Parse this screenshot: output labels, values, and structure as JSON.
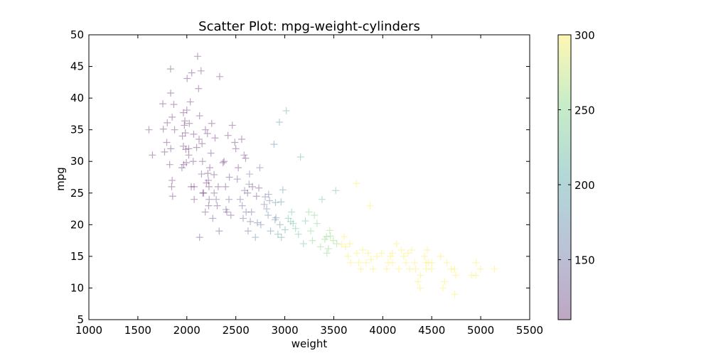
{
  "chart_data": {
    "type": "scatter",
    "title": "Scatter Plot: mpg-weight-cylinders",
    "xlabel": "weight",
    "ylabel": "mpg",
    "xlim": [
      1000,
      5500
    ],
    "ylim": [
      5,
      50
    ],
    "x_ticks": [
      "1000",
      "1500",
      "2000",
      "2500",
      "3000",
      "3500",
      "4000",
      "4500",
      "5000",
      "5500"
    ],
    "y_ticks": [
      "5",
      "10",
      "15",
      "20",
      "25",
      "30",
      "35",
      "40",
      "45",
      "50"
    ],
    "marker": "plus",
    "marker_alpha": 0.35,
    "colorbar": {
      "range": [
        110,
        300
      ],
      "ticks": [
        "150",
        "200",
        "250",
        "300"
      ],
      "colormap": [
        "#440154",
        "#3b528b",
        "#21908d",
        "#5dc963",
        "#fde725"
      ]
    },
    "points": [
      [
        1613,
        35,
        90
      ],
      [
        1649,
        31,
        80
      ],
      [
        1755,
        39.1,
        85
      ],
      [
        1760,
        35.1,
        85
      ],
      [
        1773,
        31.5,
        85
      ],
      [
        1795,
        33,
        91
      ],
      [
        1800,
        36.1,
        79
      ],
      [
        1825,
        29.5,
        90
      ],
      [
        1834,
        44.6,
        91
      ],
      [
        1835,
        40.8,
        89
      ],
      [
        1836,
        32,
        85
      ],
      [
        1845,
        26,
        97
      ],
      [
        1850,
        37,
        85
      ],
      [
        1850,
        27,
        97
      ],
      [
        1855,
        24.5,
        97
      ],
      [
        1867,
        39,
        86
      ],
      [
        1875,
        35,
        97
      ],
      [
        1950,
        29,
        97
      ],
      [
        1955,
        34,
        98
      ],
      [
        1965,
        32.4,
        107
      ],
      [
        1965,
        37.7,
        89
      ],
      [
        1968,
        29.5,
        98
      ],
      [
        1975,
        35.7,
        98
      ],
      [
        1980,
        36.4,
        91
      ],
      [
        1985,
        34.5,
        98
      ],
      [
        1990,
        31.9,
        89
      ],
      [
        1995,
        29.8,
        90
      ],
      [
        2000,
        38.1,
        97
      ],
      [
        2003,
        43.1,
        90
      ],
      [
        2019,
        32,
        91
      ],
      [
        2020,
        31,
        91
      ],
      [
        2025,
        36,
        98
      ],
      [
        2035,
        39.4,
        85
      ],
      [
        2045,
        26,
        98
      ],
      [
        2050,
        44,
        97
      ],
      [
        2065,
        30,
        98
      ],
      [
        2070,
        34.3,
        97
      ],
      [
        2074,
        26,
        107
      ],
      [
        2075,
        24,
        113
      ],
      [
        2100,
        32.2,
        108
      ],
      [
        2110,
        46.6,
        86
      ],
      [
        2120,
        41.5,
        98
      ],
      [
        2125,
        33.5,
        89
      ],
      [
        2130,
        18,
        121
      ],
      [
        2130,
        37.2,
        86
      ],
      [
        2145,
        44.3,
        90
      ],
      [
        2150,
        28,
        120
      ],
      [
        2155,
        32.8,
        91
      ],
      [
        2160,
        30,
        119
      ],
      [
        2164,
        25,
        97
      ],
      [
        2171,
        25,
        116
      ],
      [
        2188,
        22,
        120
      ],
      [
        2190,
        35,
        98
      ],
      [
        2200,
        26.6,
        108
      ],
      [
        2210,
        34.4,
        98
      ],
      [
        2215,
        28.1,
        97
      ],
      [
        2220,
        27,
        112
      ],
      [
        2223,
        23,
        120
      ],
      [
        2226,
        26,
        105
      ],
      [
        2228,
        24,
        120
      ],
      [
        2234,
        29,
        107
      ],
      [
        2246,
        31.3,
        120
      ],
      [
        2254,
        36,
        107
      ],
      [
        2265,
        21,
        122
      ],
      [
        2278,
        27.9,
        104
      ],
      [
        2279,
        25,
        120
      ],
      [
        2288,
        33.7,
        107
      ],
      [
        2300,
        24,
        134
      ],
      [
        2310,
        23,
        120
      ],
      [
        2320,
        26,
        110
      ],
      [
        2330,
        19,
        121
      ],
      [
        2335,
        43.4,
        90
      ],
      [
        2370,
        29.8,
        107
      ],
      [
        2380,
        30,
        108
      ],
      [
        2395,
        26,
        113
      ],
      [
        2400,
        22.4,
        134
      ],
      [
        2408,
        22,
        122
      ],
      [
        2420,
        34.1,
        105
      ],
      [
        2430,
        24,
        134
      ],
      [
        2434,
        27.5,
        116
      ],
      [
        2450,
        21.5,
        121
      ],
      [
        2464,
        35.7,
        112
      ],
      [
        2490,
        33,
        107
      ],
      [
        2500,
        32,
        112
      ],
      [
        2515,
        27.2,
        120
      ],
      [
        2525,
        29,
        107
      ],
      [
        2545,
        24,
        134
      ],
      [
        2560,
        33.5,
        97
      ],
      [
        2565,
        23,
        140
      ],
      [
        2575,
        21,
        140
      ],
      [
        2585,
        31,
        134
      ],
      [
        2590,
        25.4,
        140
      ],
      [
        2600,
        30.5,
        98
      ],
      [
        2605,
        22,
        140
      ],
      [
        2620,
        25,
        113
      ],
      [
        2625,
        19,
        144
      ],
      [
        2635,
        26.4,
        140
      ],
      [
        2640,
        28,
        151
      ],
      [
        2648,
        20.5,
        141
      ],
      [
        2660,
        22,
        140
      ],
      [
        2670,
        26,
        122
      ],
      [
        2700,
        18,
        171
      ],
      [
        2711,
        24.5,
        119
      ],
      [
        2720,
        20.3,
        151
      ],
      [
        2735,
        25.8,
        122
      ],
      [
        2745,
        29,
        151
      ],
      [
        2755,
        20,
        156
      ],
      [
        2790,
        23.2,
        151
      ],
      [
        2800,
        24.4,
        151
      ],
      [
        2815,
        22.5,
        156
      ],
      [
        2830,
        21.5,
        173
      ],
      [
        2835,
        24.8,
        151
      ],
      [
        2845,
        23.8,
        156
      ],
      [
        2855,
        19,
        173
      ],
      [
        2890,
        32.7,
        168
      ],
      [
        2900,
        20.8,
        168
      ],
      [
        2905,
        23.5,
        173
      ],
      [
        2910,
        21.1,
        173
      ],
      [
        2930,
        18.5,
        198
      ],
      [
        2945,
        36.2,
        199
      ],
      [
        2950,
        20,
        173
      ],
      [
        2962,
        23.6,
        181
      ],
      [
        2965,
        18,
        200
      ],
      [
        2980,
        25.5,
        181
      ],
      [
        3003,
        19.2,
        200
      ],
      [
        3015,
        38,
        200
      ],
      [
        3035,
        21,
        225
      ],
      [
        3060,
        20.5,
        225
      ],
      [
        3070,
        22,
        232
      ],
      [
        3085,
        20.2,
        225
      ],
      [
        3110,
        19.4,
        225
      ],
      [
        3139,
        18.5,
        225
      ],
      [
        3160,
        30.7,
        215
      ],
      [
        3190,
        17,
        225
      ],
      [
        3210,
        20.6,
        231
      ],
      [
        3245,
        22,
        250
      ],
      [
        3265,
        19,
        250
      ],
      [
        3282,
        17.5,
        250
      ],
      [
        3302,
        21.5,
        250
      ],
      [
        3329,
        20.2,
        250
      ],
      [
        3365,
        16.5,
        258
      ],
      [
        3380,
        24,
        232
      ],
      [
        3410,
        17.7,
        250
      ],
      [
        3425,
        18.1,
        258
      ],
      [
        3430,
        15.5,
        250
      ],
      [
        3445,
        16.2,
        250
      ],
      [
        3459,
        19.1,
        262
      ],
      [
        3465,
        18.2,
        258
      ],
      [
        3495,
        17.5,
        260
      ],
      [
        3520,
        25.4,
        225
      ],
      [
        3530,
        17,
        260
      ],
      [
        3580,
        16.9,
        302
      ],
      [
        3605,
        18.1,
        302
      ],
      [
        3620,
        16.5,
        302
      ],
      [
        3645,
        15,
        318
      ],
      [
        3664,
        17,
        304
      ],
      [
        3672,
        14,
        307
      ],
      [
        3730,
        26.5,
        302
      ],
      [
        3735,
        15.5,
        307
      ],
      [
        3755,
        14,
        318
      ],
      [
        3777,
        13,
        350
      ],
      [
        3795,
        16,
        302
      ],
      [
        3830,
        14,
        307
      ],
      [
        3850,
        15.5,
        318
      ],
      [
        3870,
        23,
        350
      ],
      [
        3880,
        14.5,
        350
      ],
      [
        3900,
        13,
        318
      ],
      [
        3940,
        15,
        350
      ],
      [
        3988,
        15.5,
        305
      ],
      [
        4040,
        13,
        350
      ],
      [
        4055,
        14,
        350
      ],
      [
        4080,
        15,
        351
      ],
      [
        4098,
        15.5,
        351
      ],
      [
        4100,
        14,
        318
      ],
      [
        4140,
        17,
        302
      ],
      [
        4165,
        13,
        350
      ],
      [
        4190,
        16,
        302
      ],
      [
        4215,
        15,
        318
      ],
      [
        4237,
        14,
        351
      ],
      [
        4257,
        15.5,
        360
      ],
      [
        4274,
        13,
        350
      ],
      [
        4295,
        16,
        350
      ],
      [
        4325,
        14,
        351
      ],
      [
        4335,
        13,
        350
      ],
      [
        4360,
        11,
        429
      ],
      [
        4380,
        10,
        455
      ],
      [
        4385,
        12,
        400
      ],
      [
        4425,
        15,
        350
      ],
      [
        4440,
        14,
        350
      ],
      [
        4445,
        13,
        400
      ],
      [
        4457,
        16,
        351
      ],
      [
        4464,
        14,
        360
      ],
      [
        4498,
        13,
        350
      ],
      [
        4502,
        14,
        400
      ],
      [
        4590,
        15,
        318
      ],
      [
        4615,
        10,
        429
      ],
      [
        4633,
        11,
        400
      ],
      [
        4654,
        14,
        360
      ],
      [
        4699,
        13,
        400
      ],
      [
        4732,
        13,
        455
      ],
      [
        4735,
        9,
        383
      ],
      [
        4746,
        12,
        429
      ],
      [
        4906,
        12,
        455
      ],
      [
        4951,
        12,
        400
      ],
      [
        4952,
        14,
        455
      ],
      [
        4997,
        13,
        454
      ],
      [
        5140,
        13,
        440
      ]
    ]
  }
}
